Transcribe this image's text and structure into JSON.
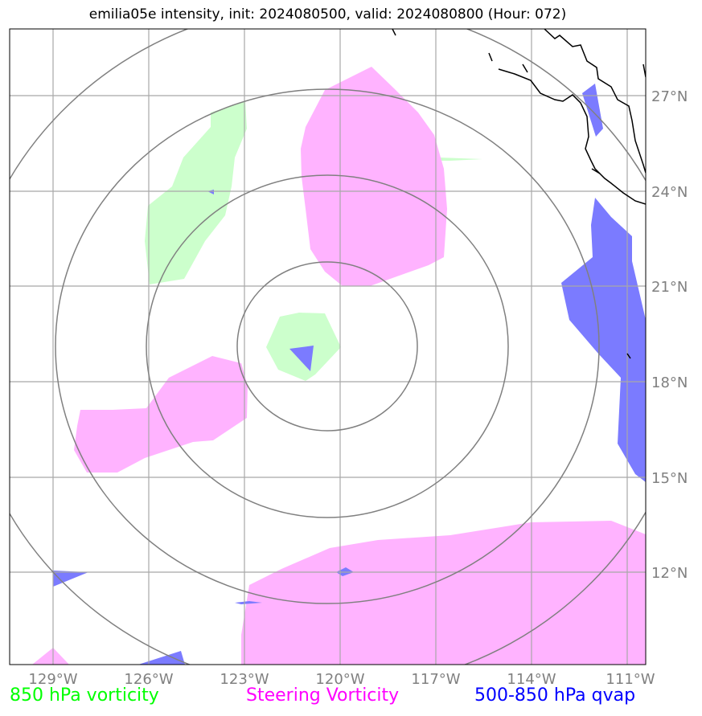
{
  "title": "emilia05e intensity, init: 2024080500, valid: 2024080800 (Hour: 072)",
  "lon_labels": [
    "129°W",
    "126°W",
    "123°W",
    "120°W",
    "117°W",
    "114°W",
    "111°W"
  ],
  "lat_labels": [
    "27°N",
    "24°N",
    "21°N",
    "18°N",
    "15°N",
    "12°N"
  ],
  "legend": [
    {
      "text": "850 hPa vorticity",
      "color": "#00ff00"
    },
    {
      "text": "Steering Vorticity",
      "color": "#ff00ff"
    },
    {
      "text": "500-850 hPa qvap",
      "color": "#0000ff"
    }
  ],
  "colors": {
    "vorticity_850": "#ccffcc",
    "steering_vorticity": "#ffb3ff",
    "qvap": "#7b7bff",
    "range_rings": "#808080",
    "gridlines": "#a8a8a8",
    "coastline": "#000000"
  }
}
